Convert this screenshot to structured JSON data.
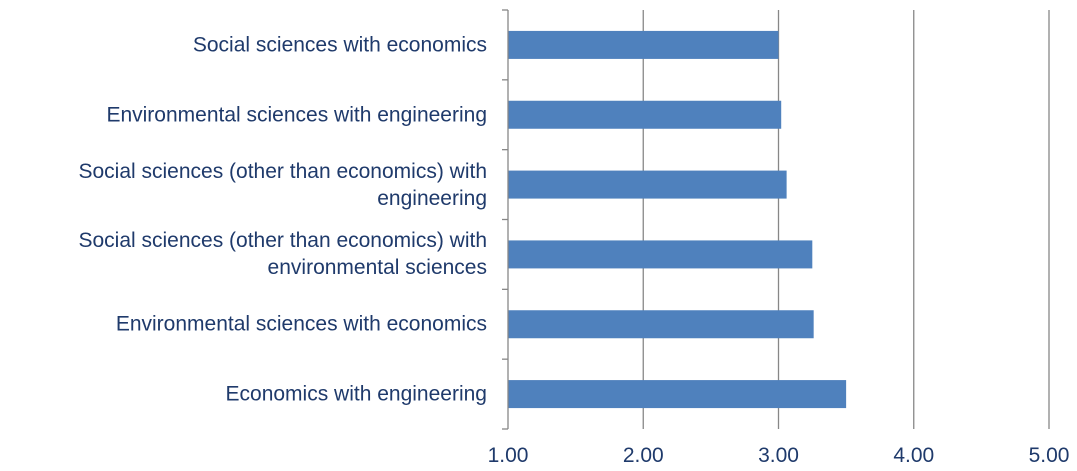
{
  "chart_data": {
    "type": "bar",
    "orientation": "horizontal",
    "title": "",
    "xlabel": "",
    "ylabel": "",
    "categories": [
      "Social sciences with economics",
      "Environmental sciences with engineering",
      "Social sciences (other than economics) with engineering",
      "Social sciences (other than economics) with environmental sciences",
      "Environmental sciences with economics",
      "Economics with engineering"
    ],
    "values": [
      3.0,
      3.02,
      3.06,
      3.25,
      3.26,
      3.5
    ],
    "xlim": [
      1.0,
      5.0
    ],
    "x_ticks": [
      "1.00",
      "2.00",
      "3.00",
      "4.00",
      "5.00"
    ],
    "x_tick_values": [
      1,
      2,
      3,
      4,
      5
    ],
    "grid": "vertical",
    "legend": "none",
    "colors": {
      "bar": "#4f81bd",
      "grid": "#878787",
      "text": "#1f3a6b"
    }
  }
}
